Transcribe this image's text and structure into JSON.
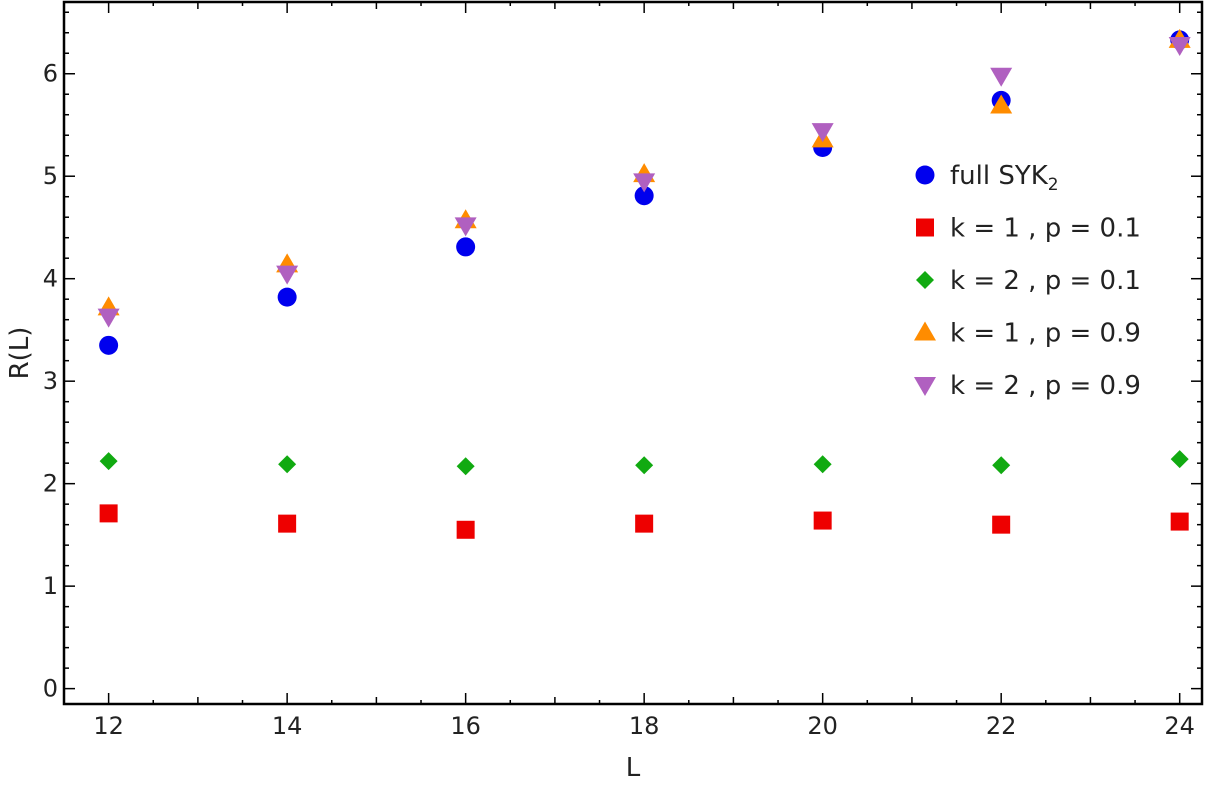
{
  "chart_data": {
    "type": "scatter",
    "xlabel": "L",
    "ylabel": "R(L)",
    "xlim": [
      11.5,
      24.25
    ],
    "ylim": [
      -0.15,
      6.7
    ],
    "xticks": [
      12,
      14,
      16,
      18,
      20,
      22,
      24
    ],
    "yticks": [
      0,
      1,
      2,
      3,
      4,
      5,
      6
    ],
    "grid": false,
    "legend_position": "right",
    "x": [
      12,
      14,
      16,
      18,
      20,
      22,
      24
    ],
    "series": [
      {
        "name": "full SYK",
        "name_subscript": "2",
        "marker": "circle",
        "color": "#0000ee",
        "values": [
          3.35,
          3.82,
          4.31,
          4.81,
          5.28,
          5.74,
          6.33
        ]
      },
      {
        "name": "k = 1 , p = 0.1",
        "marker": "square",
        "color": "#ee0000",
        "values": [
          1.71,
          1.61,
          1.55,
          1.61,
          1.64,
          1.6,
          1.63
        ]
      },
      {
        "name": "k = 2 , p = 0.1",
        "marker": "diamond",
        "color": "#11aa11",
        "values": [
          2.22,
          2.19,
          2.17,
          2.18,
          2.19,
          2.18,
          2.24
        ]
      },
      {
        "name": "k = 1 , p = 0.9",
        "marker": "triangle-up",
        "color": "#ff8c00",
        "values": [
          3.72,
          4.14,
          4.57,
          5.02,
          5.36,
          5.69,
          6.33
        ]
      },
      {
        "name": "k = 2 , p = 0.9",
        "marker": "triangle-down",
        "color": "#b060c0",
        "values": [
          3.63,
          4.05,
          4.52,
          4.95,
          5.44,
          5.98,
          6.28
        ]
      }
    ]
  }
}
